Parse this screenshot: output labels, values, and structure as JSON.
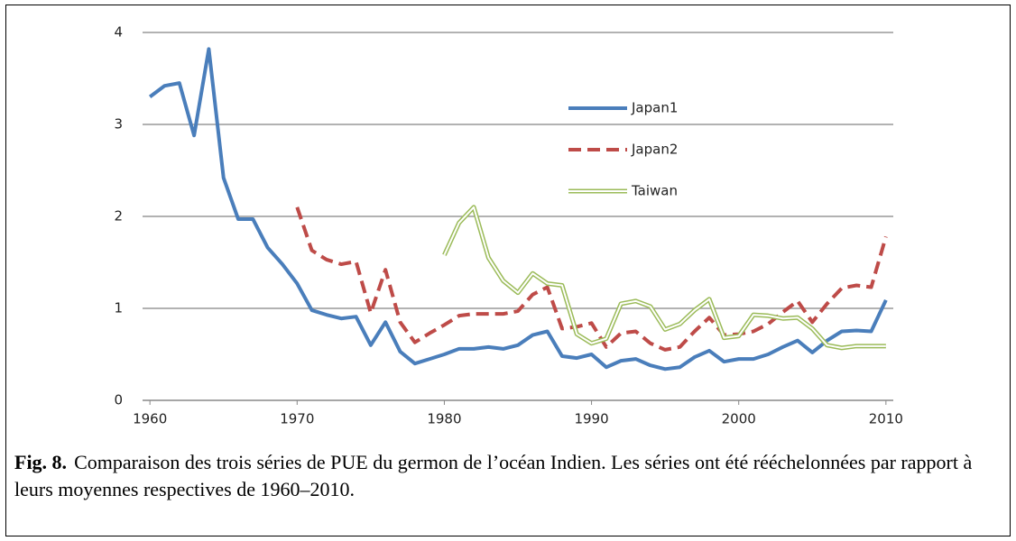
{
  "chart_data": {
    "type": "line",
    "x": [
      1960,
      1961,
      1962,
      1963,
      1964,
      1965,
      1966,
      1967,
      1968,
      1969,
      1970,
      1971,
      1972,
      1973,
      1974,
      1975,
      1976,
      1977,
      1978,
      1979,
      1980,
      1981,
      1982,
      1983,
      1984,
      1985,
      1986,
      1987,
      1988,
      1989,
      1990,
      1991,
      1992,
      1993,
      1994,
      1995,
      1996,
      1997,
      1998,
      1999,
      2000,
      2001,
      2002,
      2003,
      2004,
      2005,
      2006,
      2007,
      2008,
      2009,
      2010
    ],
    "series": [
      {
        "name": "Japan1",
        "color": "#4a7ebb",
        "style": "solid",
        "values": [
          3.3,
          3.42,
          3.45,
          2.88,
          3.82,
          2.42,
          1.97,
          1.97,
          1.66,
          1.48,
          1.27,
          0.98,
          0.93,
          0.89,
          0.91,
          0.6,
          0.85,
          0.53,
          0.4,
          0.45,
          0.5,
          0.56,
          0.56,
          0.58,
          0.56,
          0.6,
          0.71,
          0.75,
          0.48,
          0.46,
          0.5,
          0.36,
          0.43,
          0.45,
          0.38,
          0.34,
          0.36,
          0.47,
          0.54,
          0.42,
          0.45,
          0.45,
          0.5,
          0.58,
          0.65,
          0.52,
          0.65,
          0.75,
          0.76,
          0.75,
          1.09
        ]
      },
      {
        "name": "Japan2",
        "color": "#be4b48",
        "style": "dashed",
        "values": [
          null,
          null,
          null,
          null,
          null,
          null,
          null,
          null,
          null,
          null,
          2.1,
          1.63,
          1.53,
          1.48,
          1.51,
          0.95,
          1.42,
          0.85,
          0.63,
          0.73,
          0.82,
          0.92,
          0.94,
          0.94,
          0.94,
          0.97,
          1.15,
          1.23,
          0.78,
          0.8,
          0.84,
          0.58,
          0.73,
          0.75,
          0.62,
          0.55,
          0.58,
          0.75,
          0.9,
          0.71,
          0.72,
          0.75,
          0.83,
          0.96,
          1.08,
          0.85,
          1.05,
          1.22,
          1.25,
          1.23,
          1.78
        ]
      },
      {
        "name": "Taiwan",
        "color": "#9bbb59",
        "style": "double",
        "values": [
          null,
          null,
          null,
          null,
          null,
          null,
          null,
          null,
          null,
          null,
          null,
          null,
          null,
          null,
          null,
          null,
          null,
          null,
          null,
          null,
          1.58,
          1.93,
          2.1,
          1.55,
          1.3,
          1.17,
          1.38,
          1.27,
          1.25,
          0.72,
          0.62,
          0.67,
          1.05,
          1.08,
          1.02,
          0.77,
          0.83,
          0.98,
          1.1,
          0.68,
          0.7,
          0.93,
          0.92,
          0.89,
          0.9,
          0.78,
          0.6,
          0.57,
          0.59,
          0.59,
          0.59
        ]
      }
    ],
    "xlim": [
      1959.5,
      2010.5
    ],
    "xticks": [
      1960,
      1970,
      1980,
      1990,
      2000,
      2010
    ],
    "ylim": [
      0,
      4
    ],
    "yticks": [
      0,
      1,
      2,
      3,
      4
    ],
    "grid": true,
    "legend": "top-right"
  },
  "caption": {
    "label": "Fig. 8.",
    "text": "Comparaison des trois séries de PUE du germon de l’océan Indien. Les séries ont été rééchelonnées par rapport à leurs moyennes respectives de 1960–2010."
  }
}
